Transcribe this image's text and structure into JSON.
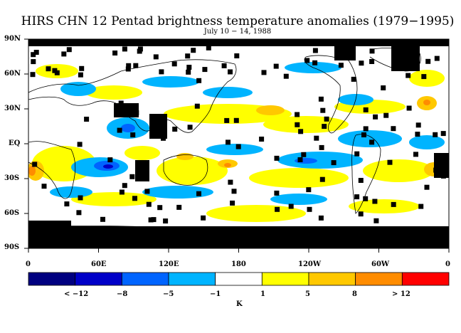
{
  "title": "HIRS CHN 12 Pentad brightness temperature anomalies (1979−1995)",
  "subtitle": "July 10 − 14, 1988",
  "lat_labels": [
    "90N",
    "60N",
    "30N",
    "EQ",
    "30S",
    "60S",
    "90S"
  ],
  "lon_labels": [
    "0",
    "60E",
    "120E",
    "180",
    "120W",
    "60W",
    "0"
  ],
  "colorbar": {
    "unit": "K",
    "labels": [
      "< −12",
      "−8",
      "−5",
      "−1",
      "1",
      "5",
      "8",
      "> 12"
    ],
    "colors": [
      "#000080",
      "#0000c8",
      "#0064ff",
      "#00b4ff",
      "#ffffff",
      "#ffff00",
      "#ffc800",
      "#ff8c00",
      "#ff0000"
    ]
  },
  "colors": {
    "missing": "#000000",
    "coastline": "#000000"
  }
}
